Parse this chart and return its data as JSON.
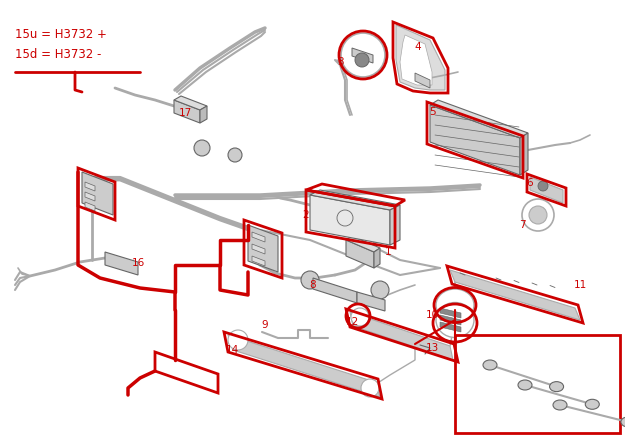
{
  "bg_color": "#ffffff",
  "red": "#cc0000",
  "lgray": "#aaaaaa",
  "dgray": "#666666",
  "mgray": "#cccccc",
  "fig_width": 6.25,
  "fig_height": 4.36,
  "dpi": 100
}
